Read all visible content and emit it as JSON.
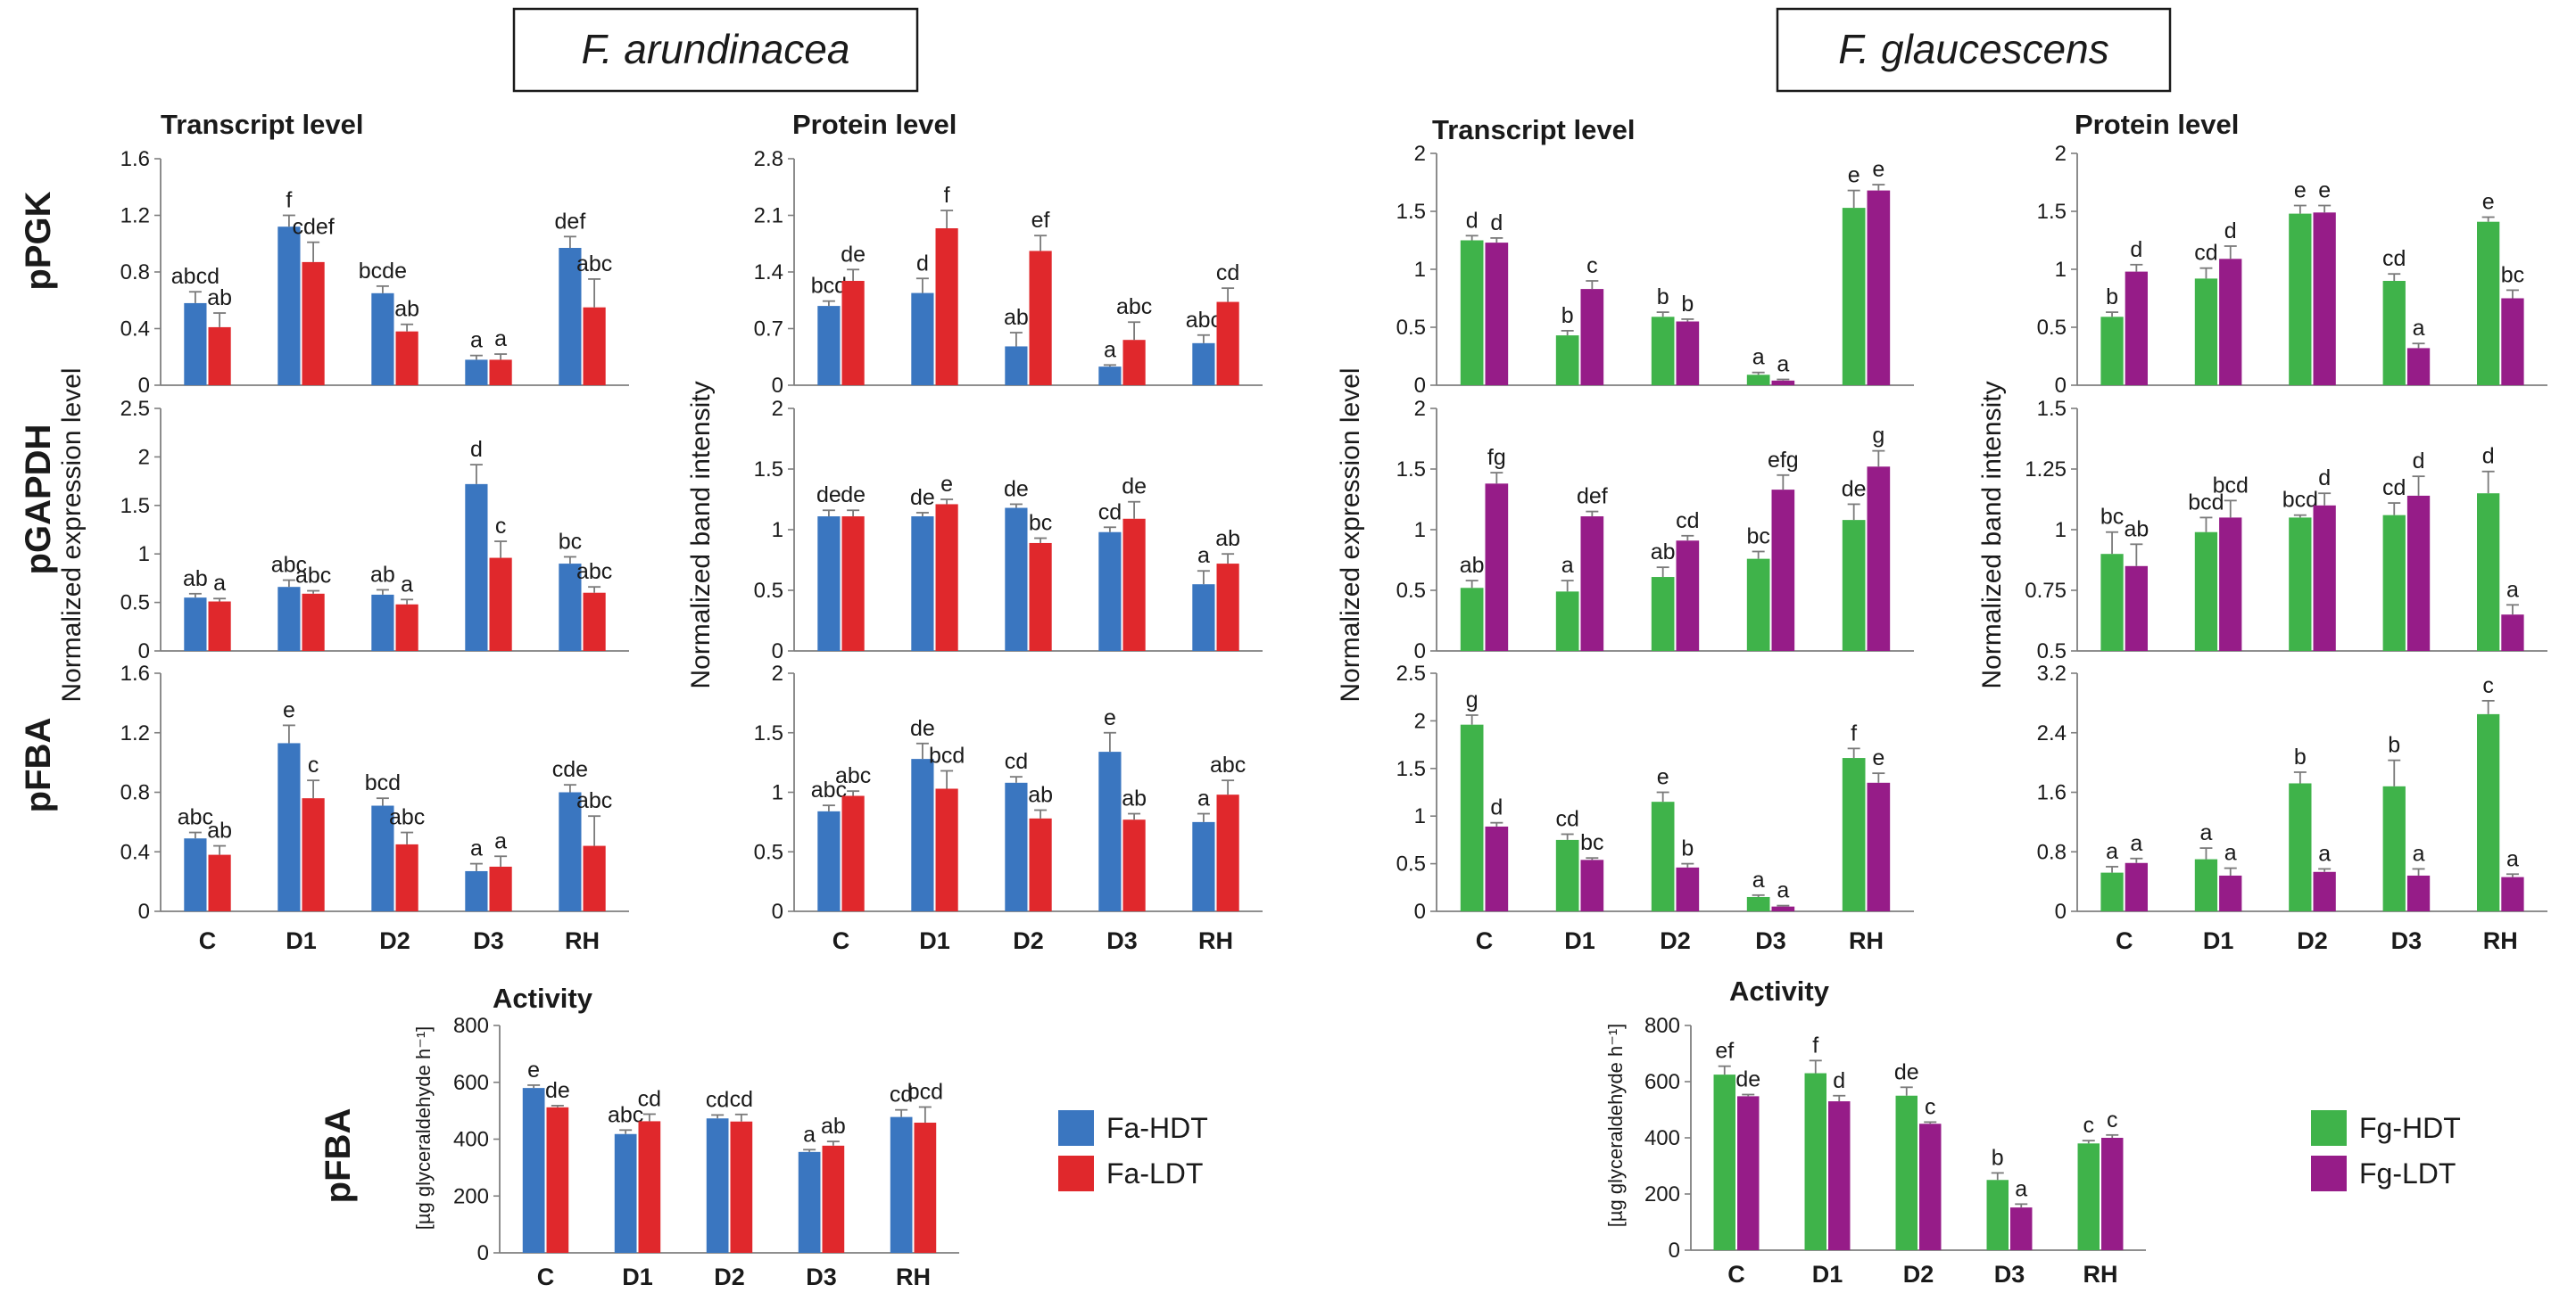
{
  "species_titles": [
    "F. arundinacea",
    "F. glaucescens"
  ],
  "panel_titles": {
    "transcript": "Transcript level",
    "protein": "Protein level",
    "activity": "Activity"
  },
  "row_labels": [
    "pPGK",
    "pGAPDH",
    "pFBA"
  ],
  "y_axis_labels": {
    "expression": "Normalized expression level",
    "band": "Normalized band intensity",
    "activity": "[µg glyceraldehyde h⁻¹]"
  },
  "activity_row_label": "pFBA",
  "legends": [
    {
      "species": "fa",
      "entries": [
        {
          "label": "Fa-HDT",
          "color": "#3a76c0"
        },
        {
          "label": "Fa-LDT",
          "color": "#e0282c"
        }
      ]
    },
    {
      "species": "fg",
      "entries": [
        {
          "label": "Fg-HDT",
          "color": "#3fb34a"
        },
        {
          "label": "Fg-LDT",
          "color": "#961c88"
        }
      ]
    }
  ],
  "colors": {
    "fa": [
      "#3a76c0",
      "#e0282c"
    ],
    "fg": [
      "#3fb34a",
      "#961c88"
    ],
    "axis": "#7f7f7f",
    "text": "#1a1a1a",
    "errorbar": "#7a7a7a"
  },
  "chart_data": [
    {
      "id": "fa-pgk-transcript",
      "type": "bar",
      "species": "fa",
      "title": "Transcript level",
      "row": "pPGK",
      "categories": [
        "C",
        "D1",
        "D2",
        "D3",
        "RH"
      ],
      "ylim": [
        0,
        1.6
      ],
      "yticks": [
        "0",
        "0.4",
        "0.8",
        "1.2",
        "1.6"
      ],
      "series": [
        {
          "name": "Fa-HDT",
          "values": [
            0.58,
            1.12,
            0.65,
            0.18,
            0.97
          ],
          "errors": [
            0.08,
            0.08,
            0.05,
            0.03,
            0.08
          ],
          "labels": [
            "abcd",
            "f",
            "bcde",
            "a",
            "def"
          ]
        },
        {
          "name": "Fa-LDT",
          "values": [
            0.41,
            0.87,
            0.38,
            0.18,
            0.55
          ],
          "errors": [
            0.1,
            0.14,
            0.05,
            0.04,
            0.2
          ],
          "labels": [
            "ab",
            "cdef",
            "ab",
            "a",
            "abc"
          ]
        }
      ]
    },
    {
      "id": "fa-pgk-protein",
      "type": "bar",
      "species": "fa",
      "title": "Protein level",
      "row": "pPGK",
      "categories": [
        "C",
        "D1",
        "D2",
        "D3",
        "RH"
      ],
      "ylim": [
        0,
        2.8
      ],
      "yticks": [
        "0",
        "0.7",
        "1.4",
        "2.1",
        "2.8"
      ],
      "series": [
        {
          "name": "Fa-HDT",
          "values": [
            0.98,
            1.14,
            0.48,
            0.23,
            0.52
          ],
          "errors": [
            0.06,
            0.18,
            0.17,
            0.02,
            0.1
          ],
          "labels": [
            "bcd",
            "d",
            "ab",
            "a",
            "abc"
          ]
        },
        {
          "name": "Fa-LDT",
          "values": [
            1.29,
            1.94,
            1.66,
            0.56,
            1.03
          ],
          "errors": [
            0.14,
            0.22,
            0.19,
            0.22,
            0.17
          ],
          "labels": [
            "de",
            "f",
            "ef",
            "abc",
            "cd"
          ]
        }
      ]
    },
    {
      "id": "fa-gapdh-transcript",
      "type": "bar",
      "species": "fa",
      "row": "pGAPDH",
      "categories": [
        "C",
        "D1",
        "D2",
        "D3",
        "RH"
      ],
      "ylim": [
        0,
        2.5
      ],
      "yticks": [
        "0",
        "0.5",
        "1",
        "1.5",
        "2",
        "2.5"
      ],
      "series": [
        {
          "name": "Fa-HDT",
          "values": [
            0.55,
            0.66,
            0.58,
            1.72,
            0.9
          ],
          "errors": [
            0.04,
            0.07,
            0.05,
            0.2,
            0.07
          ],
          "labels": [
            "ab",
            "abc",
            "ab",
            "d",
            "bc"
          ]
        },
        {
          "name": "Fa-LDT",
          "values": [
            0.51,
            0.59,
            0.48,
            0.96,
            0.6
          ],
          "errors": [
            0.03,
            0.03,
            0.05,
            0.17,
            0.06
          ],
          "labels": [
            "a",
            "abc",
            "a",
            "c",
            "abc"
          ]
        }
      ]
    },
    {
      "id": "fa-gapdh-protein",
      "type": "bar",
      "species": "fa",
      "row": "pGAPDH",
      "categories": [
        "C",
        "D1",
        "D2",
        "D3",
        "RH"
      ],
      "ylim": [
        0,
        2
      ],
      "yticks": [
        "0",
        "0.5",
        "1",
        "1.5",
        "2"
      ],
      "series": [
        {
          "name": "Fa-HDT",
          "values": [
            1.11,
            1.11,
            1.18,
            0.98,
            0.55
          ],
          "errors": [
            0.05,
            0.03,
            0.03,
            0.04,
            0.11
          ],
          "labels": [
            "de",
            "de",
            "de",
            "cd",
            "a"
          ]
        },
        {
          "name": "Fa-LDT",
          "values": [
            1.11,
            1.21,
            0.89,
            1.09,
            0.72
          ],
          "errors": [
            0.05,
            0.04,
            0.04,
            0.14,
            0.08
          ],
          "labels": [
            "de",
            "e",
            "bc",
            "de",
            "ab"
          ]
        }
      ]
    },
    {
      "id": "fa-fba-transcript",
      "type": "bar",
      "species": "fa",
      "row": "pFBA",
      "categories": [
        "C",
        "D1",
        "D2",
        "D3",
        "RH"
      ],
      "ylim": [
        0,
        1.6
      ],
      "yticks": [
        "0",
        "0.4",
        "0.8",
        "1.2",
        "1.6"
      ],
      "series": [
        {
          "name": "Fa-HDT",
          "values": [
            0.49,
            1.13,
            0.71,
            0.27,
            0.8
          ],
          "errors": [
            0.04,
            0.12,
            0.05,
            0.05,
            0.05
          ],
          "labels": [
            "abc",
            "e",
            "bcd",
            "a",
            "cde"
          ]
        },
        {
          "name": "Fa-LDT",
          "values": [
            0.38,
            0.76,
            0.45,
            0.3,
            0.44
          ],
          "errors": [
            0.06,
            0.12,
            0.08,
            0.07,
            0.2
          ],
          "labels": [
            "ab",
            "c",
            "abc",
            "a",
            "abc"
          ]
        }
      ]
    },
    {
      "id": "fa-fba-protein",
      "type": "bar",
      "species": "fa",
      "row": "pFBA",
      "categories": [
        "C",
        "D1",
        "D2",
        "D3",
        "RH"
      ],
      "ylim": [
        0,
        2
      ],
      "yticks": [
        "0",
        "0.5",
        "1",
        "1.5",
        "2"
      ],
      "series": [
        {
          "name": "Fa-HDT",
          "values": [
            0.84,
            1.28,
            1.08,
            1.34,
            0.75
          ],
          "errors": [
            0.05,
            0.13,
            0.05,
            0.16,
            0.07
          ],
          "labels": [
            "abc",
            "de",
            "cd",
            "e",
            "a"
          ]
        },
        {
          "name": "Fa-LDT",
          "values": [
            0.97,
            1.03,
            0.78,
            0.77,
            0.98
          ],
          "errors": [
            0.04,
            0.15,
            0.07,
            0.05,
            0.12
          ],
          "labels": [
            "abc",
            "bcd",
            "ab",
            "ab",
            "abc"
          ]
        }
      ]
    },
    {
      "id": "fg-pgk-transcript",
      "type": "bar",
      "species": "fg",
      "title": "Transcript level",
      "row": "pPGK",
      "categories": [
        "C",
        "D1",
        "D2",
        "D3",
        "RH"
      ],
      "ylim": [
        0,
        2
      ],
      "yticks": [
        "0",
        "0.5",
        "1",
        "1.5",
        "2"
      ],
      "series": [
        {
          "name": "Fg-HDT",
          "values": [
            1.25,
            0.43,
            0.59,
            0.09,
            1.53
          ],
          "errors": [
            0.04,
            0.04,
            0.04,
            0.02,
            0.15
          ],
          "labels": [
            "d",
            "b",
            "b",
            "a",
            "e"
          ]
        },
        {
          "name": "Fg-LDT",
          "values": [
            1.23,
            0.83,
            0.55,
            0.04,
            1.68
          ],
          "errors": [
            0.04,
            0.07,
            0.02,
            0.01,
            0.05
          ],
          "labels": [
            "d",
            "c",
            "b",
            "a",
            "e"
          ]
        }
      ]
    },
    {
      "id": "fg-pgk-protein",
      "type": "bar",
      "species": "fg",
      "title": "Protein level",
      "row": "pPGK",
      "categories": [
        "C",
        "D1",
        "D2",
        "D3",
        "RH"
      ],
      "ylim": [
        0,
        2
      ],
      "yticks": [
        "0",
        "0.5",
        "1",
        "1.5",
        "2"
      ],
      "series": [
        {
          "name": "Fg-HDT",
          "values": [
            0.59,
            0.92,
            1.48,
            0.9,
            1.41
          ],
          "errors": [
            0.04,
            0.09,
            0.07,
            0.06,
            0.04
          ],
          "labels": [
            "b",
            "cd",
            "e",
            "cd",
            "e"
          ]
        },
        {
          "name": "Fg-LDT",
          "values": [
            0.98,
            1.09,
            1.49,
            0.32,
            0.75
          ],
          "errors": [
            0.06,
            0.11,
            0.06,
            0.04,
            0.07
          ],
          "labels": [
            "d",
            "d",
            "e",
            "a",
            "bc"
          ]
        }
      ]
    },
    {
      "id": "fg-gapdh-transcript",
      "type": "bar",
      "species": "fg",
      "row": "pGAPDH",
      "categories": [
        "C",
        "D1",
        "D2",
        "D3",
        "RH"
      ],
      "ylim": [
        0,
        2
      ],
      "yticks": [
        "0",
        "0.5",
        "1",
        "1.5",
        "2"
      ],
      "series": [
        {
          "name": "Fg-HDT",
          "values": [
            0.52,
            0.49,
            0.61,
            0.76,
            1.08
          ],
          "errors": [
            0.06,
            0.09,
            0.08,
            0.06,
            0.13
          ],
          "labels": [
            "ab",
            "a",
            "ab",
            "bc",
            "de"
          ]
        },
        {
          "name": "Fg-LDT",
          "values": [
            1.38,
            1.11,
            0.91,
            1.33,
            1.52
          ],
          "errors": [
            0.09,
            0.04,
            0.04,
            0.12,
            0.13
          ],
          "labels": [
            "fg",
            "def",
            "cd",
            "efg",
            "g"
          ]
        }
      ]
    },
    {
      "id": "fg-gapdh-protein",
      "type": "bar",
      "species": "fg",
      "row": "pGAPDH",
      "categories": [
        "C",
        "D1",
        "D2",
        "D3",
        "RH"
      ],
      "ylim": [
        0.5,
        1.5
      ],
      "yticks": [
        "0.5",
        "0.75",
        "1",
        "1.25",
        "1.5"
      ],
      "series": [
        {
          "name": "Fg-HDT",
          "values": [
            0.9,
            0.99,
            1.05,
            1.06,
            1.15
          ],
          "errors": [
            0.09,
            0.06,
            0.01,
            0.05,
            0.09
          ],
          "labels": [
            "bc",
            "bcd",
            "bcd",
            "cd",
            "d"
          ]
        },
        {
          "name": "Fg-LDT",
          "values": [
            0.85,
            1.05,
            1.1,
            1.14,
            0.65
          ],
          "errors": [
            0.09,
            0.07,
            0.05,
            0.08,
            0.04
          ],
          "labels": [
            "ab",
            "bcd",
            "d",
            "d",
            "a"
          ]
        }
      ]
    },
    {
      "id": "fg-fba-transcript",
      "type": "bar",
      "species": "fg",
      "row": "pFBA",
      "categories": [
        "C",
        "D1",
        "D2",
        "D3",
        "RH"
      ],
      "ylim": [
        0,
        2.5
      ],
      "yticks": [
        "0",
        "0.5",
        "1",
        "1.5",
        "2",
        "2.5"
      ],
      "series": [
        {
          "name": "Fg-HDT",
          "values": [
            1.96,
            0.75,
            1.15,
            0.15,
            1.61
          ],
          "errors": [
            0.1,
            0.06,
            0.1,
            0.02,
            0.1
          ],
          "labels": [
            "g",
            "cd",
            "e",
            "a",
            "f"
          ]
        },
        {
          "name": "Fg-LDT",
          "values": [
            0.89,
            0.54,
            0.46,
            0.05,
            1.35
          ],
          "errors": [
            0.04,
            0.02,
            0.04,
            0.01,
            0.1
          ],
          "labels": [
            "d",
            "bc",
            "b",
            "a",
            "e"
          ]
        }
      ]
    },
    {
      "id": "fg-fba-protein",
      "type": "bar",
      "species": "fg",
      "row": "pFBA",
      "categories": [
        "C",
        "D1",
        "D2",
        "D3",
        "RH"
      ],
      "ylim": [
        0,
        3.2
      ],
      "yticks": [
        "0",
        "0.8",
        "1.6",
        "2.4",
        "3.2"
      ],
      "series": [
        {
          "name": "Fg-HDT",
          "values": [
            0.52,
            0.7,
            1.72,
            1.68,
            2.65
          ],
          "errors": [
            0.08,
            0.15,
            0.15,
            0.35,
            0.18
          ],
          "labels": [
            "a",
            "a",
            "b",
            "b",
            "c"
          ]
        },
        {
          "name": "Fg-LDT",
          "values": [
            0.65,
            0.48,
            0.53,
            0.48,
            0.46
          ],
          "errors": [
            0.06,
            0.1,
            0.04,
            0.09,
            0.04
          ],
          "labels": [
            "a",
            "a",
            "a",
            "a",
            "a"
          ]
        }
      ]
    },
    {
      "id": "fa-fba-activity",
      "type": "bar",
      "species": "fa",
      "title": "Activity",
      "row": "pFBA",
      "categories": [
        "C",
        "D1",
        "D2",
        "D3",
        "RH"
      ],
      "ylim": [
        0,
        800
      ],
      "yticks": [
        "0",
        "200",
        "400",
        "600",
        "800"
      ],
      "series": [
        {
          "name": "Fa-HDT",
          "values": [
            580,
            418,
            473,
            355,
            478
          ],
          "errors": [
            10,
            14,
            12,
            8,
            25
          ],
          "labels": [
            "e",
            "abc",
            "cd",
            "a",
            "cd"
          ]
        },
        {
          "name": "Fa-LDT",
          "values": [
            512,
            463,
            462,
            377,
            458
          ],
          "errors": [
            6,
            25,
            25,
            15,
            55
          ],
          "labels": [
            "de",
            "cd",
            "cd",
            "ab",
            "bcd"
          ]
        }
      ]
    },
    {
      "id": "fg-fba-activity",
      "type": "bar",
      "species": "fg",
      "title": "Activity",
      "row": "pFBA",
      "categories": [
        "C",
        "D1",
        "D2",
        "D3",
        "RH"
      ],
      "ylim": [
        0,
        800
      ],
      "yticks": [
        "0",
        "200",
        "400",
        "600",
        "800"
      ],
      "series": [
        {
          "name": "Fg-HDT",
          "values": [
            625,
            630,
            550,
            250,
            380
          ],
          "errors": [
            30,
            45,
            30,
            25,
            10
          ],
          "labels": [
            "ef",
            "f",
            "de",
            "b",
            "c"
          ]
        },
        {
          "name": "Fg-LDT",
          "values": [
            548,
            530,
            450,
            152,
            400
          ],
          "errors": [
            6,
            20,
            6,
            12,
            10
          ],
          "labels": [
            "de",
            "d",
            "c",
            "a",
            "c"
          ]
        }
      ]
    }
  ]
}
